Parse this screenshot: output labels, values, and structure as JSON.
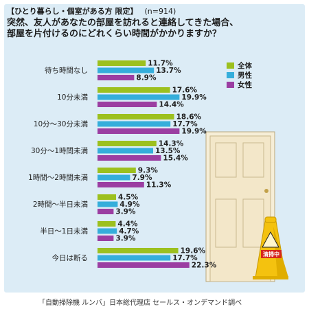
{
  "header": {
    "subtitle": "【ひとり暮らし・個室がある方 限定】",
    "sample": "(n=914)",
    "title_line1": "突然、友人があなたの部屋を訪れると連絡してきた場合、",
    "title_line2": "部屋を片付けるのにどれくらい時間がかかりますか？"
  },
  "source": "「自動掃除機 ルンバ」日本総代理店 セールス・オンデマンド調べ",
  "sign_text": "清掃中",
  "colors": {
    "all": "#9cc01e",
    "male": "#35aedb",
    "female": "#9b3ea2",
    "background": "#dcecf6"
  },
  "chart_data": {
    "type": "bar",
    "orientation": "horizontal",
    "unit": "%",
    "categories": [
      "待ち時間なし",
      "10分未満",
      "10分～30分未満",
      "30分～1時間未満",
      "1時間～2時間未満",
      "2時間～半日未満",
      "半日～1日未満",
      "今日は断る"
    ],
    "series": [
      {
        "name": "全体",
        "color": "#9cc01e",
        "values": [
          11.7,
          17.6,
          18.6,
          14.3,
          9.3,
          4.5,
          4.4,
          19.6
        ],
        "labels": [
          "11.7%",
          "17.6%",
          "18.6%",
          "14.3%",
          "9.3%",
          "4.5%",
          "4.4%",
          "19.6%"
        ]
      },
      {
        "name": "男性",
        "color": "#35aedb",
        "values": [
          13.7,
          19.9,
          17.7,
          13.5,
          7.9,
          4.9,
          4.7,
          17.7
        ],
        "labels": [
          "13.7%",
          "19.9%",
          "17.7%",
          "13.5%",
          "7.9%",
          "4.9%",
          "4.7%",
          "17.7%"
        ]
      },
      {
        "name": "女性",
        "color": "#9b3ea2",
        "values": [
          8.9,
          14.4,
          19.9,
          15.4,
          11.3,
          3.9,
          3.9,
          22.3
        ],
        "labels": [
          "8.9%",
          "14.4%",
          "19.9%",
          "15.4%",
          "11.3%",
          "3.9%",
          "3.9%",
          "22.3%"
        ]
      }
    ],
    "legend_position": "right"
  }
}
